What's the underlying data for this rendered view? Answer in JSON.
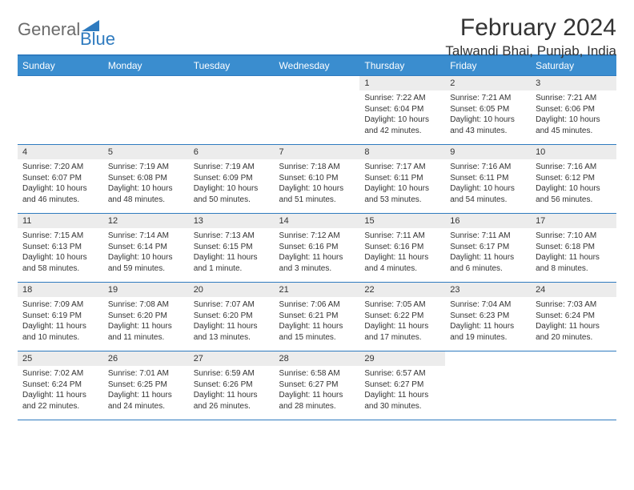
{
  "logo": {
    "general": "General",
    "blue": "Blue"
  },
  "title": "February 2024",
  "location": "Talwandi Bhai, Punjab, India",
  "colors": {
    "header_bg": "#3a8dcf",
    "accent": "#2f7bbf",
    "daynum_bg": "#ececec",
    "text": "#333333"
  },
  "weekdays": [
    "Sunday",
    "Monday",
    "Tuesday",
    "Wednesday",
    "Thursday",
    "Friday",
    "Saturday"
  ],
  "weeks": [
    [
      null,
      null,
      null,
      null,
      {
        "n": "1",
        "sunrise": "Sunrise: 7:22 AM",
        "sunset": "Sunset: 6:04 PM",
        "daylight": "Daylight: 10 hours and 42 minutes."
      },
      {
        "n": "2",
        "sunrise": "Sunrise: 7:21 AM",
        "sunset": "Sunset: 6:05 PM",
        "daylight": "Daylight: 10 hours and 43 minutes."
      },
      {
        "n": "3",
        "sunrise": "Sunrise: 7:21 AM",
        "sunset": "Sunset: 6:06 PM",
        "daylight": "Daylight: 10 hours and 45 minutes."
      }
    ],
    [
      {
        "n": "4",
        "sunrise": "Sunrise: 7:20 AM",
        "sunset": "Sunset: 6:07 PM",
        "daylight": "Daylight: 10 hours and 46 minutes."
      },
      {
        "n": "5",
        "sunrise": "Sunrise: 7:19 AM",
        "sunset": "Sunset: 6:08 PM",
        "daylight": "Daylight: 10 hours and 48 minutes."
      },
      {
        "n": "6",
        "sunrise": "Sunrise: 7:19 AM",
        "sunset": "Sunset: 6:09 PM",
        "daylight": "Daylight: 10 hours and 50 minutes."
      },
      {
        "n": "7",
        "sunrise": "Sunrise: 7:18 AM",
        "sunset": "Sunset: 6:10 PM",
        "daylight": "Daylight: 10 hours and 51 minutes."
      },
      {
        "n": "8",
        "sunrise": "Sunrise: 7:17 AM",
        "sunset": "Sunset: 6:11 PM",
        "daylight": "Daylight: 10 hours and 53 minutes."
      },
      {
        "n": "9",
        "sunrise": "Sunrise: 7:16 AM",
        "sunset": "Sunset: 6:11 PM",
        "daylight": "Daylight: 10 hours and 54 minutes."
      },
      {
        "n": "10",
        "sunrise": "Sunrise: 7:16 AM",
        "sunset": "Sunset: 6:12 PM",
        "daylight": "Daylight: 10 hours and 56 minutes."
      }
    ],
    [
      {
        "n": "11",
        "sunrise": "Sunrise: 7:15 AM",
        "sunset": "Sunset: 6:13 PM",
        "daylight": "Daylight: 10 hours and 58 minutes."
      },
      {
        "n": "12",
        "sunrise": "Sunrise: 7:14 AM",
        "sunset": "Sunset: 6:14 PM",
        "daylight": "Daylight: 10 hours and 59 minutes."
      },
      {
        "n": "13",
        "sunrise": "Sunrise: 7:13 AM",
        "sunset": "Sunset: 6:15 PM",
        "daylight": "Daylight: 11 hours and 1 minute."
      },
      {
        "n": "14",
        "sunrise": "Sunrise: 7:12 AM",
        "sunset": "Sunset: 6:16 PM",
        "daylight": "Daylight: 11 hours and 3 minutes."
      },
      {
        "n": "15",
        "sunrise": "Sunrise: 7:11 AM",
        "sunset": "Sunset: 6:16 PM",
        "daylight": "Daylight: 11 hours and 4 minutes."
      },
      {
        "n": "16",
        "sunrise": "Sunrise: 7:11 AM",
        "sunset": "Sunset: 6:17 PM",
        "daylight": "Daylight: 11 hours and 6 minutes."
      },
      {
        "n": "17",
        "sunrise": "Sunrise: 7:10 AM",
        "sunset": "Sunset: 6:18 PM",
        "daylight": "Daylight: 11 hours and 8 minutes."
      }
    ],
    [
      {
        "n": "18",
        "sunrise": "Sunrise: 7:09 AM",
        "sunset": "Sunset: 6:19 PM",
        "daylight": "Daylight: 11 hours and 10 minutes."
      },
      {
        "n": "19",
        "sunrise": "Sunrise: 7:08 AM",
        "sunset": "Sunset: 6:20 PM",
        "daylight": "Daylight: 11 hours and 11 minutes."
      },
      {
        "n": "20",
        "sunrise": "Sunrise: 7:07 AM",
        "sunset": "Sunset: 6:20 PM",
        "daylight": "Daylight: 11 hours and 13 minutes."
      },
      {
        "n": "21",
        "sunrise": "Sunrise: 7:06 AM",
        "sunset": "Sunset: 6:21 PM",
        "daylight": "Daylight: 11 hours and 15 minutes."
      },
      {
        "n": "22",
        "sunrise": "Sunrise: 7:05 AM",
        "sunset": "Sunset: 6:22 PM",
        "daylight": "Daylight: 11 hours and 17 minutes."
      },
      {
        "n": "23",
        "sunrise": "Sunrise: 7:04 AM",
        "sunset": "Sunset: 6:23 PM",
        "daylight": "Daylight: 11 hours and 19 minutes."
      },
      {
        "n": "24",
        "sunrise": "Sunrise: 7:03 AM",
        "sunset": "Sunset: 6:24 PM",
        "daylight": "Daylight: 11 hours and 20 minutes."
      }
    ],
    [
      {
        "n": "25",
        "sunrise": "Sunrise: 7:02 AM",
        "sunset": "Sunset: 6:24 PM",
        "daylight": "Daylight: 11 hours and 22 minutes."
      },
      {
        "n": "26",
        "sunrise": "Sunrise: 7:01 AM",
        "sunset": "Sunset: 6:25 PM",
        "daylight": "Daylight: 11 hours and 24 minutes."
      },
      {
        "n": "27",
        "sunrise": "Sunrise: 6:59 AM",
        "sunset": "Sunset: 6:26 PM",
        "daylight": "Daylight: 11 hours and 26 minutes."
      },
      {
        "n": "28",
        "sunrise": "Sunrise: 6:58 AM",
        "sunset": "Sunset: 6:27 PM",
        "daylight": "Daylight: 11 hours and 28 minutes."
      },
      {
        "n": "29",
        "sunrise": "Sunrise: 6:57 AM",
        "sunset": "Sunset: 6:27 PM",
        "daylight": "Daylight: 11 hours and 30 minutes."
      },
      null,
      null
    ]
  ]
}
